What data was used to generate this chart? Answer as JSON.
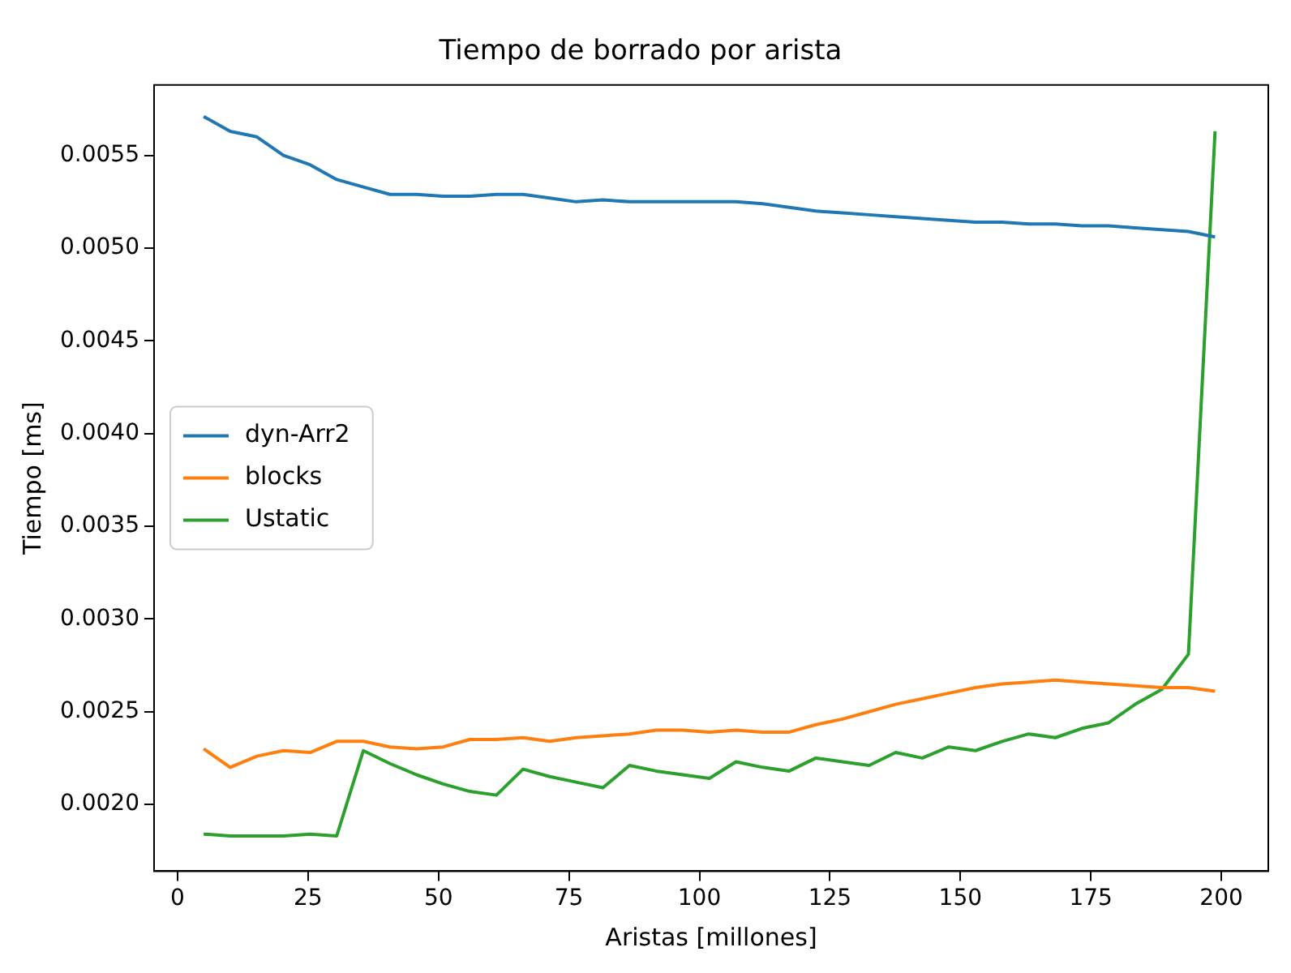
{
  "chart_data": {
    "type": "line",
    "title": "Tiempo de borrado por arista",
    "xlabel": "Aristas [millones]",
    "ylabel": "Tiempo [ms]",
    "x": [
      5,
      10.1,
      15.2,
      20.3,
      25.4,
      30.5,
      35.6,
      40.7,
      45.8,
      50.9,
      56,
      61.1,
      66.2,
      71.3,
      76.4,
      81.5,
      86.6,
      91.7,
      96.8,
      101.9,
      107,
      112.1,
      117.2,
      122.3,
      127.4,
      132.5,
      137.6,
      142.7,
      147.8,
      152.9,
      158,
      163.1,
      168.2,
      173.3,
      178.4,
      183.5,
      188.6,
      193.7,
      198.8
    ],
    "series": [
      {
        "name": "dyn-Arr2",
        "color": "#1f77b4",
        "values": [
          0.00571,
          0.00563,
          0.0056,
          0.0055,
          0.00545,
          0.00537,
          0.00533,
          0.00529,
          0.00529,
          0.00528,
          0.00528,
          0.00529,
          0.00529,
          0.00527,
          0.00525,
          0.00526,
          0.00525,
          0.00525,
          0.00525,
          0.00525,
          0.00525,
          0.00524,
          0.00522,
          0.0052,
          0.00519,
          0.00518,
          0.00517,
          0.00516,
          0.00515,
          0.00514,
          0.00514,
          0.00513,
          0.00513,
          0.00512,
          0.00512,
          0.00511,
          0.0051,
          0.00509,
          0.00506
        ]
      },
      {
        "name": "blocks",
        "color": "#ff7f0e",
        "values": [
          0.0023,
          0.0022,
          0.00226,
          0.00229,
          0.00228,
          0.00234,
          0.00234,
          0.00231,
          0.0023,
          0.00231,
          0.00235,
          0.00235,
          0.00236,
          0.00234,
          0.00236,
          0.00237,
          0.00238,
          0.0024,
          0.0024,
          0.00239,
          0.0024,
          0.00239,
          0.00239,
          0.00243,
          0.00246,
          0.0025,
          0.00254,
          0.00257,
          0.0026,
          0.00263,
          0.00265,
          0.00266,
          0.00267,
          0.00266,
          0.00265,
          0.00264,
          0.00263,
          0.00263,
          0.00261
        ]
      },
      {
        "name": "Ustatic",
        "color": "#2ca02c",
        "values": [
          0.00184,
          0.00183,
          0.00183,
          0.00183,
          0.00184,
          0.00183,
          0.00229,
          0.00222,
          0.00216,
          0.00211,
          0.00207,
          0.00205,
          0.00219,
          0.00215,
          0.00212,
          0.00209,
          0.00221,
          0.00218,
          0.00216,
          0.00214,
          0.00223,
          0.0022,
          0.00218,
          0.00225,
          0.00223,
          0.00221,
          0.00228,
          0.00225,
          0.00231,
          0.00229,
          0.00234,
          0.00238,
          0.00236,
          0.00241,
          0.00244,
          0.00254,
          0.00262,
          0.00281,
          0.00563
        ]
      }
    ],
    "xlim": [
      -4.5,
      209
    ],
    "xticks": [
      0,
      25,
      50,
      75,
      100,
      125,
      150,
      175,
      200
    ],
    "ylim": [
      0.00164,
      0.00588
    ],
    "yticks": [
      {
        "value": 0.002,
        "label": "0.0020"
      },
      {
        "value": 0.0025,
        "label": "0.0025"
      },
      {
        "value": 0.003,
        "label": "0.0030"
      },
      {
        "value": 0.0035,
        "label": "0.0035"
      },
      {
        "value": 0.004,
        "label": "0.0040"
      },
      {
        "value": 0.0045,
        "label": "0.0045"
      },
      {
        "value": 0.005,
        "label": "0.0050"
      },
      {
        "value": 0.0055,
        "label": "0.0055"
      }
    ],
    "grid": false,
    "legend": "left",
    "marker": "none",
    "line_style": "solid"
  }
}
